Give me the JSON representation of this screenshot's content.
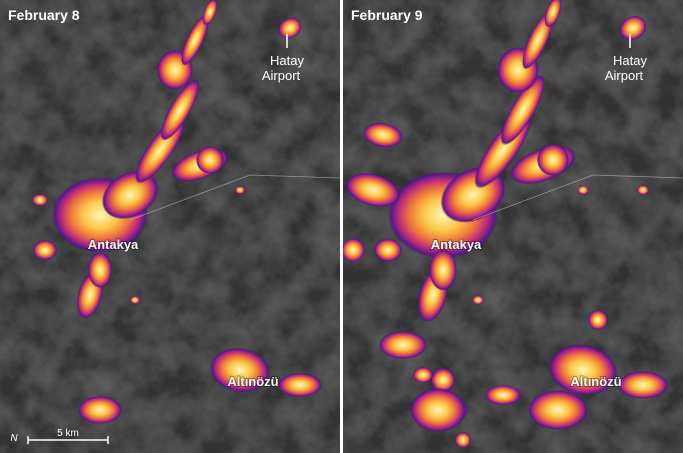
{
  "panels": [
    {
      "date": "February 8",
      "airport": [
        "Hatay",
        "Airport"
      ],
      "city": "Antakya",
      "town": "Altınözü"
    },
    {
      "date": "February 9",
      "airport": [
        "Hatay",
        "Airport"
      ],
      "city": "Antakya",
      "town": "Altınözü"
    }
  ],
  "north": "N",
  "scale_bar": "5 km"
}
